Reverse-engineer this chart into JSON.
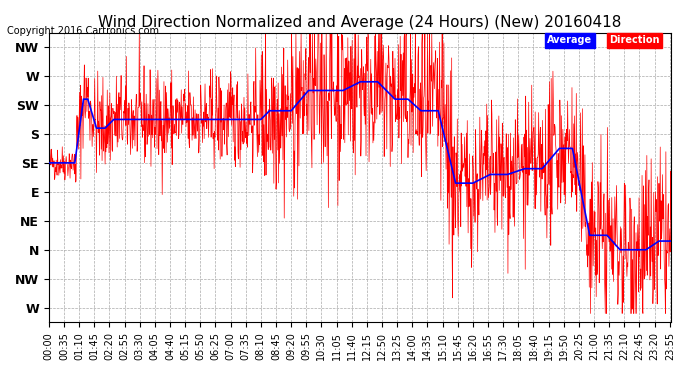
{
  "title": "Wind Direction Normalized and Average (24 Hours) (New) 20160418",
  "copyright": "Copyright 2016 Cartronics.com",
  "background_color": "#ffffff",
  "plot_bg_color": "#ffffff",
  "grid_color": "#aaaaaa",
  "y_labels": [
    "NW",
    "W",
    "SW",
    "S",
    "SE",
    "E",
    "NE",
    "N",
    "NW",
    "W"
  ],
  "y_values": [
    10,
    9,
    8,
    7,
    6,
    5,
    4,
    3,
    2,
    1
  ],
  "y_min": 0.5,
  "y_max": 10.5,
  "x_tick_interval": 35,
  "line_color_direction": "red",
  "line_color_average": "blue",
  "title_fontsize": 11,
  "axis_fontsize": 7,
  "ylabel_fontsize": 9
}
